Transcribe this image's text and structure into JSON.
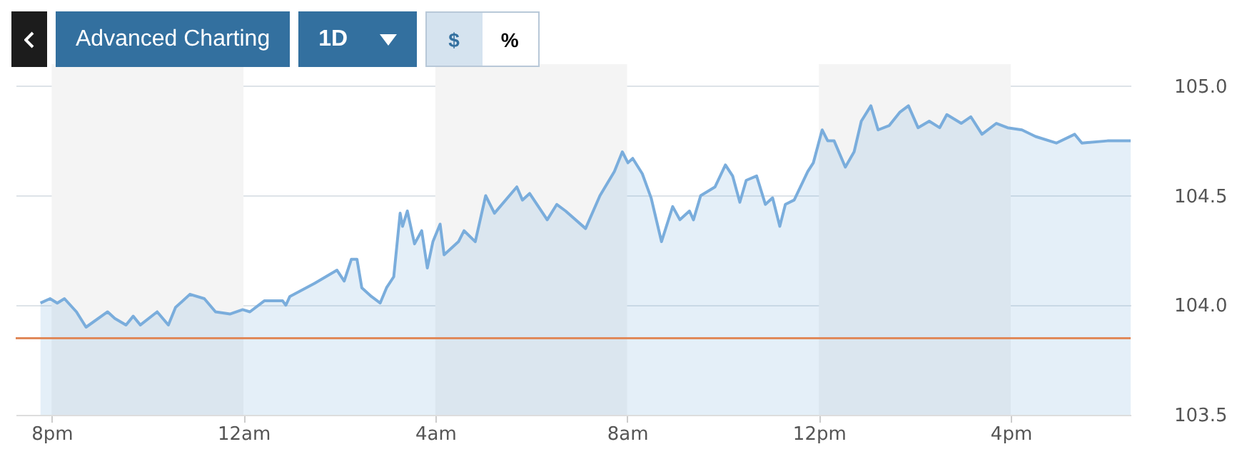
{
  "chart_data": {
    "type": "area",
    "annotations": [
      "Advanced Charting",
      "1D",
      "$",
      "%"
    ],
    "x": [
      "--01-01T19:46",
      "--01-01T19:58",
      "--01-01T20:07",
      "--01-01T20:16",
      "--01-01T20:31",
      "--01-01T20:43",
      "--01-01T21:10",
      "--01-01T21:19",
      "--01-01T21:33",
      "--01-01T21:42",
      "--01-01T21:51",
      "--01-01T22:12",
      "--01-01T22:26",
      "--01-01T22:35",
      "--01-01T22:53",
      "--01-01T23:11",
      "--01-01T23:25",
      "--01-01T23:43",
      "--01-01T23:59",
      "--01-02T00:08",
      "--01-02T00:26",
      "--01-02T00:49",
      "--01-02T00:53",
      "--01-02T00:58",
      "--01-02T01:29",
      "--01-02T01:57",
      "--01-02T02:06",
      "--01-02T02:15",
      "--01-02T02:22",
      "--01-02T02:28",
      "--01-02T02:40",
      "--01-02T02:51",
      "--01-02T02:59",
      "--01-02T03:08",
      "--01-02T03:16",
      "--01-02T03:19",
      "--01-02T03:25",
      "--01-02T03:34",
      "--01-02T03:43",
      "--01-02T03:50",
      "--01-02T03:57",
      "--01-02T04:06",
      "--01-02T04:11",
      "--01-02T04:29",
      "--01-02T04:36",
      "--01-02T04:50",
      "--01-02T05:03",
      "--01-02T05:14",
      "--01-02T05:42",
      "--01-02T05:49",
      "--01-02T05:58",
      "--01-02T06:20",
      "--01-02T06:32",
      "--01-02T06:43",
      "--01-02T07:08",
      "--01-02T07:26",
      "--01-02T07:44",
      "--01-02T07:54",
      "--01-02T08:01",
      "--01-02T08:07",
      "--01-02T08:19",
      "--01-02T08:30",
      "--01-02T08:43",
      "--01-02T08:57",
      "--01-02T09:06",
      "--01-02T09:18",
      "--01-02T09:23",
      "--01-02T09:32",
      "--01-02T09:50",
      "--01-02T10:03",
      "--01-02T10:12",
      "--01-02T10:21",
      "--01-02T10:29",
      "--01-02T10:42",
      "--01-02T10:53",
      "--01-02T11:02",
      "--01-02T11:11",
      "--01-02T11:18",
      "--01-02T11:29",
      "--01-02T11:46",
      "--01-02T11:53",
      "--01-02T12:04",
      "--01-02T12:11",
      "--01-02T12:19",
      "--01-02T12:33",
      "--01-02T12:44",
      "--01-02T12:53",
      "--01-02T13:05",
      "--01-02T13:14",
      "--01-02T13:28",
      "--01-02T13:41",
      "--01-02T13:52",
      "--01-02T14:04",
      "--01-02T14:18",
      "--01-02T14:31",
      "--01-02T14:40",
      "--01-02T14:58",
      "--01-02T15:10",
      "--01-02T15:24",
      "--01-02T15:42",
      "--01-02T15:56",
      "--01-02T16:14",
      "--01-02T16:31",
      "--01-02T16:57",
      "--01-02T17:20",
      "--01-02T17:29",
      "--01-02T18:01",
      "--01-02T18:30"
    ],
    "series": [
      {
        "color": "#7aaddc",
        "values": [
          104.01,
          104.03,
          104.01,
          104.03,
          103.97,
          103.9,
          103.97,
          103.94,
          103.91,
          103.95,
          103.91,
          103.97,
          103.91,
          103.99,
          104.05,
          104.03,
          103.97,
          103.96,
          103.98,
          103.97,
          104.02,
          104.02,
          104.0,
          104.04,
          104.1,
          104.16,
          104.11,
          104.21,
          104.21,
          104.08,
          104.04,
          104.01,
          104.08,
          104.13,
          104.42,
          104.36,
          104.43,
          104.28,
          104.34,
          104.17,
          104.29,
          104.37,
          104.23,
          104.29,
          104.34,
          104.29,
          104.5,
          104.42,
          104.54,
          104.48,
          104.51,
          104.39,
          104.46,
          104.43,
          104.35,
          104.5,
          104.61,
          104.7,
          104.65,
          104.67,
          104.6,
          104.49,
          104.29,
          104.45,
          104.39,
          104.43,
          104.39,
          104.5,
          104.54,
          104.64,
          104.59,
          104.47,
          104.57,
          104.59,
          104.46,
          104.49,
          104.36,
          104.46,
          104.48,
          104.61,
          104.65,
          104.8,
          104.75,
          104.75,
          104.63,
          104.7,
          104.84,
          104.91,
          104.8,
          104.82,
          104.88,
          104.91,
          104.81,
          104.84,
          104.81,
          104.87,
          104.83,
          104.86,
          104.78,
          104.83,
          104.81,
          104.8,
          104.77,
          104.74,
          104.78,
          104.74,
          104.75,
          104.75
        ]
      }
    ],
    "xlim": [
      "--01-01T19:15",
      "--01-02T18:30"
    ],
    "xticks": [
      {
        "value": "--01-01T20:00",
        "label": "8pm"
      },
      {
        "value": "--01-02T00:00",
        "label": "12am"
      },
      {
        "value": "--01-02T04:00",
        "label": "4am"
      },
      {
        "value": "--01-02T08:00",
        "label": "8am"
      },
      {
        "value": "--01-02T12:00",
        "label": "12pm"
      },
      {
        "value": "--01-02T16:00",
        "label": "4pm"
      }
    ],
    "ylim": [
      103.5,
      105.1
    ],
    "yticks": [
      {
        "value": 103.5,
        "label": "103.5"
      },
      {
        "value": 104,
        "label": "104.0"
      },
      {
        "value": 104.5,
        "label": "104.5"
      },
      {
        "value": 105,
        "label": "105.0"
      }
    ],
    "ref_lines": [
      {
        "axis": "y",
        "value": 103.85,
        "color": "#e0895a"
      }
    ],
    "bands": [
      {
        "axis": "x",
        "from": "--01-01T20:00",
        "to": "--01-02T00:00",
        "color": "#f4f4f4"
      },
      {
        "axis": "x",
        "from": "--01-02T04:00",
        "to": "--01-02T08:00",
        "color": "#f4f4f4"
      },
      {
        "axis": "x",
        "from": "--01-02T12:00",
        "to": "--01-02T16:00",
        "color": "#f4f4f4"
      }
    ],
    "grid": "y",
    "marker": "none"
  }
}
